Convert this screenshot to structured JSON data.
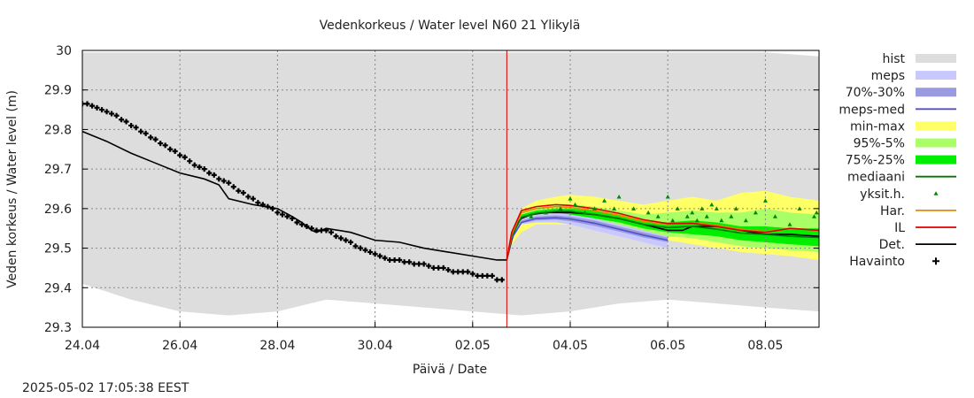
{
  "chart_data": {
    "type": "line",
    "title": "Vedenkorkeus / Water level   N60 21 Ylikylä",
    "xlabel": "Päivä / Date",
    "ylabel": "Veden korkeus / Water level (m)",
    "timestamp": "2025-05-02 17:05:38 EEST",
    "xlim": [
      0,
      15.1
    ],
    "ylim": [
      29.3,
      30.0
    ],
    "x_ticks": [
      {
        "x": 0,
        "label": "24.04"
      },
      {
        "x": 2,
        "label": "26.04"
      },
      {
        "x": 4,
        "label": "28.04"
      },
      {
        "x": 6,
        "label": "30.04"
      },
      {
        "x": 8,
        "label": "02.05"
      },
      {
        "x": 10,
        "label": "04.05"
      },
      {
        "x": 12,
        "label": "06.05"
      },
      {
        "x": 14,
        "label": "08.05"
      }
    ],
    "y_ticks": [
      29.3,
      29.4,
      29.5,
      29.6,
      29.7,
      29.8,
      29.9,
      30.0
    ],
    "grid": true,
    "forecast_start_x": 8.7,
    "legend_position": "right",
    "legend": [
      {
        "label": "hist",
        "kind": "box",
        "color": "#dddddd"
      },
      {
        "label": "meps",
        "kind": "box",
        "color": "#c8c8ff"
      },
      {
        "label": "70%-30%",
        "kind": "box",
        "color": "#9a9ae0"
      },
      {
        "label": "meps-med",
        "kind": "line",
        "color": "#5050c8"
      },
      {
        "label": "min-max",
        "kind": "box",
        "color": "#ffff66"
      },
      {
        "label": "95%-5%",
        "kind": "box",
        "color": "#aaff66"
      },
      {
        "label": "75%-25%",
        "kind": "box",
        "color": "#00ee00"
      },
      {
        "label": "mediaani",
        "kind": "line",
        "color": "#007700"
      },
      {
        "label": "yksit.h.",
        "kind": "triangle",
        "color": "#008800"
      },
      {
        "label": "Har.",
        "kind": "line",
        "color": "#ee8800"
      },
      {
        "label": "IL",
        "kind": "line",
        "color": "#dd0000"
      },
      {
        "label": "Det.",
        "kind": "line",
        "color": "#000000"
      },
      {
        "label": "Havainto",
        "kind": "plus",
        "color": "#000000"
      }
    ],
    "bands": {
      "hist": {
        "x": [
          0,
          1,
          2,
          3,
          4,
          5,
          6,
          7,
          8,
          9,
          10,
          11,
          12,
          13,
          14,
          15.1
        ],
        "upper": [
          29.995,
          29.995,
          29.995,
          29.995,
          29.995,
          29.995,
          29.995,
          29.995,
          29.995,
          29.995,
          29.995,
          29.995,
          29.995,
          29.995,
          29.995,
          29.985
        ],
        "lower": [
          29.41,
          29.37,
          29.34,
          29.33,
          29.34,
          29.37,
          29.36,
          29.35,
          29.34,
          29.33,
          29.34,
          29.36,
          29.37,
          29.36,
          29.35,
          29.34
        ]
      },
      "min_max": {
        "x": [
          8.7,
          8.8,
          9.0,
          9.3,
          9.7,
          10.0,
          10.5,
          11.0,
          11.5,
          12.0,
          12.5,
          13.0,
          13.5,
          14.0,
          14.5,
          15.1
        ],
        "upper": [
          29.47,
          29.54,
          29.6,
          29.62,
          29.63,
          29.635,
          29.63,
          29.62,
          29.61,
          29.62,
          29.63,
          29.62,
          29.64,
          29.645,
          29.63,
          29.62
        ],
        "lower": [
          29.47,
          29.51,
          29.54,
          29.56,
          29.56,
          29.56,
          29.55,
          29.54,
          29.53,
          29.52,
          29.51,
          29.5,
          29.49,
          29.485,
          29.48,
          29.47
        ]
      },
      "p95_5": {
        "x": [
          8.7,
          8.8,
          9.0,
          9.3,
          9.7,
          10.0,
          10.5,
          11.0,
          11.5,
          12.0,
          12.5,
          13.0,
          13.5,
          14.0,
          14.5,
          15.1
        ],
        "upper": [
          29.47,
          29.54,
          29.59,
          29.605,
          29.61,
          29.61,
          29.605,
          29.595,
          29.585,
          29.59,
          29.595,
          29.59,
          29.59,
          29.6,
          29.59,
          29.585
        ],
        "lower": [
          29.47,
          29.52,
          29.56,
          29.57,
          29.575,
          29.575,
          29.565,
          29.555,
          29.54,
          29.53,
          29.525,
          29.515,
          29.505,
          29.5,
          29.495,
          29.49
        ]
      },
      "p75_25": {
        "x": [
          8.7,
          8.8,
          9.0,
          9.3,
          9.7,
          10.0,
          10.5,
          11.0,
          11.5,
          12.0,
          12.5,
          13.0,
          13.5,
          14.0,
          14.5,
          15.1
        ],
        "upper": [
          29.47,
          29.535,
          29.585,
          29.595,
          29.6,
          29.6,
          29.595,
          29.585,
          29.57,
          29.565,
          29.57,
          29.565,
          29.555,
          29.555,
          29.55,
          29.55
        ],
        "lower": [
          29.47,
          29.525,
          29.57,
          29.58,
          29.585,
          29.585,
          29.575,
          29.565,
          29.55,
          29.54,
          29.535,
          29.53,
          29.52,
          29.515,
          29.51,
          29.505
        ]
      },
      "meps": {
        "x": [
          8.7,
          8.8,
          9.0,
          9.3,
          9.7,
          10.0,
          10.5,
          11.0,
          11.5,
          12.0
        ],
        "upper": [
          29.47,
          29.53,
          29.575,
          29.585,
          29.59,
          29.585,
          29.575,
          29.56,
          29.545,
          29.53
        ],
        "lower": [
          29.47,
          29.52,
          29.56,
          29.565,
          29.565,
          29.56,
          29.545,
          29.53,
          29.515,
          29.5
        ]
      },
      "meps_70_30": {
        "x": [
          8.7,
          8.8,
          9.0,
          9.3,
          9.7,
          10.0,
          10.5,
          11.0,
          11.5,
          12.0
        ],
        "upper": [
          29.47,
          29.528,
          29.57,
          29.58,
          29.583,
          29.58,
          29.57,
          29.555,
          29.54,
          29.527
        ],
        "lower": [
          29.47,
          29.522,
          29.563,
          29.57,
          29.572,
          29.568,
          29.556,
          29.542,
          29.527,
          29.515
        ]
      }
    },
    "series": [
      {
        "name": "Havainto",
        "style": "plus",
        "x": [
          0,
          0.1,
          0.2,
          0.3,
          0.4,
          0.5,
          0.6,
          0.7,
          0.8,
          0.9,
          1.0,
          1.1,
          1.2,
          1.3,
          1.4,
          1.5,
          1.6,
          1.7,
          1.8,
          1.9,
          2.0,
          2.1,
          2.2,
          2.3,
          2.4,
          2.5,
          2.6,
          2.7,
          2.8,
          2.9,
          3.0,
          3.1,
          3.2,
          3.3,
          3.4,
          3.5,
          3.6,
          3.7,
          3.8,
          3.9,
          4.0,
          4.1,
          4.2,
          4.3,
          4.4,
          4.5,
          4.6,
          4.7,
          4.8,
          4.9,
          5.0,
          5.1,
          5.2,
          5.3,
          5.4,
          5.5,
          5.6,
          5.7,
          5.8,
          5.9,
          6.0,
          6.1,
          6.2,
          6.3,
          6.4,
          6.5,
          6.6,
          6.7,
          6.8,
          6.9,
          7.0,
          7.1,
          7.2,
          7.3,
          7.4,
          7.5,
          7.6,
          7.7,
          7.8,
          7.9,
          8.0,
          8.1,
          8.2,
          8.3,
          8.4,
          8.5,
          8.6
        ],
        "y": [
          29.865,
          29.865,
          29.86,
          29.855,
          29.85,
          29.845,
          29.84,
          29.835,
          29.825,
          29.82,
          29.81,
          29.805,
          29.795,
          29.79,
          29.78,
          29.775,
          29.765,
          29.76,
          29.75,
          29.745,
          29.735,
          29.73,
          29.72,
          29.71,
          29.705,
          29.7,
          29.69,
          29.685,
          29.675,
          29.67,
          29.665,
          29.655,
          29.645,
          29.64,
          29.63,
          29.625,
          29.615,
          29.61,
          29.605,
          29.6,
          29.59,
          29.585,
          29.58,
          29.575,
          29.565,
          29.56,
          29.555,
          29.55,
          29.545,
          29.545,
          29.545,
          29.54,
          29.53,
          29.525,
          29.52,
          29.515,
          29.505,
          29.5,
          29.495,
          29.49,
          29.485,
          29.48,
          29.475,
          29.47,
          29.47,
          29.47,
          29.465,
          29.465,
          29.46,
          29.46,
          29.46,
          29.455,
          29.45,
          29.45,
          29.45,
          29.445,
          29.44,
          29.44,
          29.44,
          29.44,
          29.435,
          29.43,
          29.43,
          29.43,
          29.43,
          29.42,
          29.42
        ]
      },
      {
        "name": "Det.",
        "style": "line",
        "color": "#000000",
        "x": [
          0,
          0.5,
          1.0,
          1.5,
          2.0,
          2.5,
          2.8,
          3.0,
          3.5,
          4.0,
          4.3,
          4.5,
          4.7,
          4.8,
          5.0,
          5.5,
          6.0,
          6.5,
          7.0,
          7.5,
          8.0,
          8.5,
          8.7,
          8.8,
          8.9,
          9.0,
          9.2,
          9.5,
          10.0,
          10.5,
          11.0,
          11.5,
          12.0,
          12.3,
          12.5,
          13.0,
          13.5,
          14.0,
          14.5,
          15.1
        ],
        "y": [
          29.795,
          29.77,
          29.74,
          29.715,
          29.69,
          29.675,
          29.66,
          29.625,
          29.61,
          29.6,
          29.58,
          29.565,
          29.545,
          29.54,
          29.55,
          29.54,
          29.52,
          29.515,
          29.5,
          29.49,
          29.48,
          29.47,
          29.47,
          29.52,
          29.56,
          29.575,
          29.585,
          29.59,
          29.59,
          29.585,
          29.575,
          29.56,
          29.545,
          29.545,
          29.555,
          29.555,
          29.545,
          29.535,
          29.535,
          29.53
        ]
      },
      {
        "name": "meps-med",
        "style": "line",
        "color": "#5050c8",
        "x": [
          8.7,
          8.8,
          9.0,
          9.3,
          9.7,
          10.0,
          10.5,
          11.0,
          11.5,
          12.0
        ],
        "y": [
          29.47,
          29.525,
          29.565,
          29.575,
          29.577,
          29.574,
          29.563,
          29.548,
          29.533,
          29.52
        ]
      },
      {
        "name": "mediaani",
        "style": "line",
        "color": "#007700",
        "x": [
          8.7,
          8.8,
          9.0,
          9.3,
          9.7,
          10.0,
          10.5,
          11.0,
          11.5,
          12.0,
          12.5,
          13.0,
          13.5,
          14.0,
          14.5,
          15.1
        ],
        "y": [
          29.47,
          29.53,
          29.578,
          29.588,
          29.593,
          29.593,
          29.585,
          29.575,
          29.56,
          29.552,
          29.555,
          29.548,
          29.538,
          29.535,
          29.53,
          29.527
        ]
      },
      {
        "name": "Har.",
        "style": "line",
        "color": "#ee8800",
        "x": [
          8.7,
          8.8,
          9.0,
          9.3,
          9.7,
          10.0,
          10.5,
          11.0,
          11.5,
          12.0,
          12.5,
          13.0,
          13.5,
          14.0,
          14.5,
          15.1
        ],
        "y": [
          29.47,
          29.535,
          29.59,
          29.6,
          29.605,
          29.603,
          29.595,
          29.583,
          29.568,
          29.56,
          29.565,
          29.558,
          29.548,
          29.542,
          29.55,
          29.545
        ]
      },
      {
        "name": "IL",
        "style": "line",
        "color": "#dd0000",
        "x": [
          8.7,
          8.8,
          9.0,
          9.3,
          9.7,
          10.0,
          10.5,
          11.0,
          11.5,
          12.0,
          12.5,
          13.0,
          13.5,
          14.0,
          14.5,
          15.1
        ],
        "y": [
          29.47,
          29.54,
          29.595,
          29.605,
          29.61,
          29.608,
          29.6,
          29.588,
          29.572,
          29.562,
          29.563,
          29.555,
          29.545,
          29.54,
          29.55,
          29.545
        ]
      },
      {
        "name": "yksit.h.",
        "style": "triangle",
        "color": "#008800",
        "x": [
          9.2,
          9.5,
          9.8,
          10.0,
          10.1,
          10.3,
          10.5,
          10.7,
          10.9,
          11.0,
          11.3,
          11.6,
          11.8,
          12.0,
          12.1,
          12.2,
          12.4,
          12.5,
          12.6,
          12.7,
          12.8,
          12.9,
          13.0,
          13.1,
          13.3,
          13.4,
          13.6,
          13.8,
          14.0,
          14.2,
          14.5,
          14.7,
          15.0,
          15.05
        ],
        "y": [
          29.58,
          29.59,
          29.6,
          29.625,
          29.61,
          29.59,
          29.6,
          29.62,
          29.6,
          29.63,
          29.6,
          29.59,
          29.58,
          29.63,
          29.57,
          29.6,
          29.58,
          29.59,
          29.57,
          29.6,
          29.58,
          29.61,
          29.6,
          29.57,
          29.58,
          29.6,
          29.57,
          29.59,
          29.62,
          29.58,
          29.56,
          29.6,
          29.58,
          29.59
        ]
      }
    ]
  }
}
